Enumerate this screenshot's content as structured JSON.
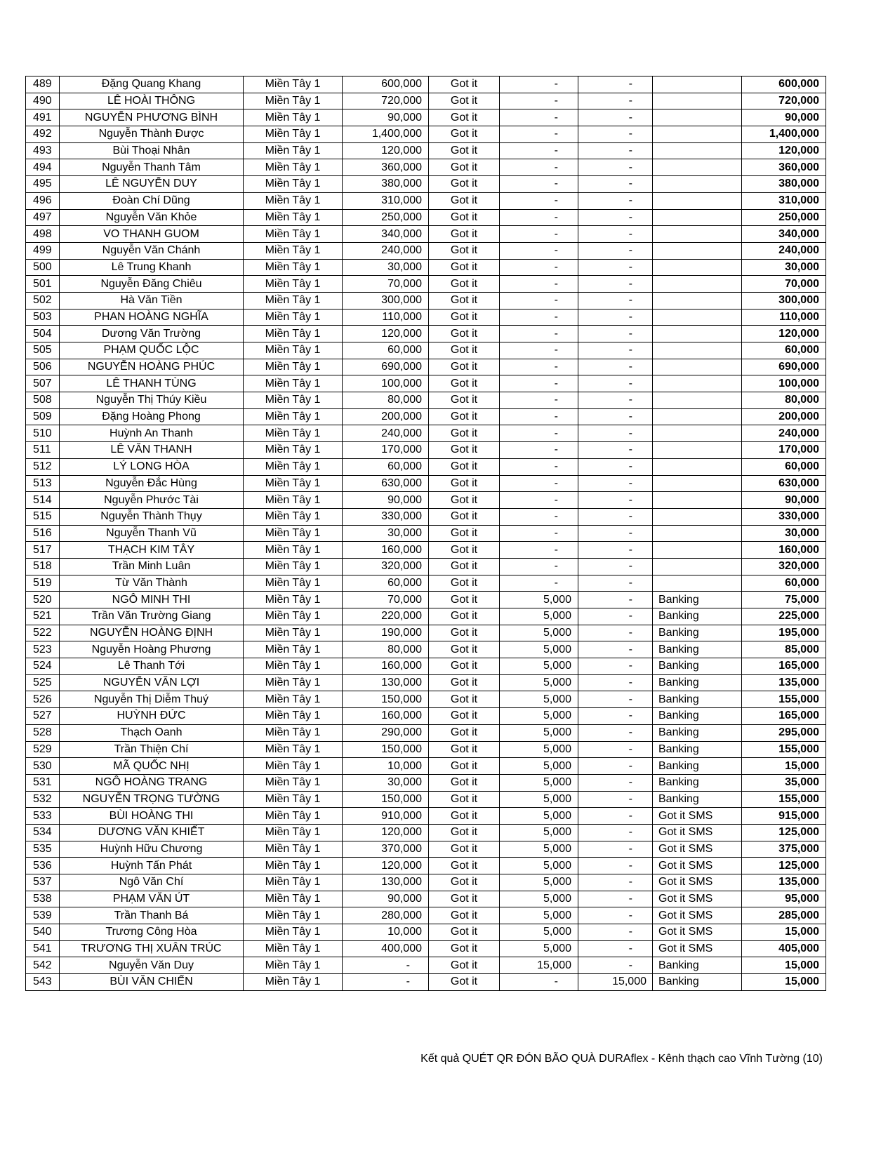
{
  "table": {
    "rows": [
      [
        "489",
        "Đặng Quang Khang",
        "Miền Tây 1",
        "600,000",
        "Got it",
        "-",
        "-",
        "",
        "600,000"
      ],
      [
        "490",
        "LÊ HOÀI THÔNG",
        "Miền Tây 1",
        "720,000",
        "Got it",
        "-",
        "-",
        "",
        "720,000"
      ],
      [
        "491",
        "NGUYỄN PHƯƠNG BÌNH",
        "Miền Tây 1",
        "90,000",
        "Got it",
        "-",
        "-",
        "",
        "90,000"
      ],
      [
        "492",
        "Nguyễn Thành Được",
        "Miền Tây 1",
        "1,400,000",
        "Got it",
        "-",
        "-",
        "",
        "1,400,000"
      ],
      [
        "493",
        "Bùi Thoại Nhân",
        "Miền Tây 1",
        "120,000",
        "Got it",
        "-",
        "-",
        "",
        "120,000"
      ],
      [
        "494",
        "Nguyễn Thanh Tâm",
        "Miền Tây 1",
        "360,000",
        "Got it",
        "-",
        "-",
        "",
        "360,000"
      ],
      [
        "495",
        "LÊ NGUYỄN DUY",
        "Miền Tây 1",
        "380,000",
        "Got it",
        "-",
        "-",
        "",
        "380,000"
      ],
      [
        "496",
        "Đoàn Chí Dũng",
        "Miền Tây 1",
        "310,000",
        "Got it",
        "-",
        "-",
        "",
        "310,000"
      ],
      [
        "497",
        "Nguyễn Văn Khỏe",
        "Miền Tây 1",
        "250,000",
        "Got it",
        "-",
        "-",
        "",
        "250,000"
      ],
      [
        "498",
        "VO THANH GUOM",
        "Miền Tây 1",
        "340,000",
        "Got it",
        "-",
        "-",
        "",
        "340,000"
      ],
      [
        "499",
        "Nguyễn Văn Chánh",
        "Miền Tây 1",
        "240,000",
        "Got it",
        "-",
        "-",
        "",
        "240,000"
      ],
      [
        "500",
        "Lê Trung Khanh",
        "Miền Tây 1",
        "30,000",
        "Got it",
        "-",
        "-",
        "",
        "30,000"
      ],
      [
        "501",
        "Nguyễn Đăng Chiêu",
        "Miền Tây 1",
        "70,000",
        "Got it",
        "-",
        "-",
        "",
        "70,000"
      ],
      [
        "502",
        "Hà Văn Tiền",
        "Miền Tây 1",
        "300,000",
        "Got it",
        "-",
        "-",
        "",
        "300,000"
      ],
      [
        "503",
        "PHAN HOÀNG NGHĨA",
        "Miền Tây 1",
        "110,000",
        "Got it",
        "-",
        "-",
        "",
        "110,000"
      ],
      [
        "504",
        "Dương Văn Trường",
        "Miền Tây 1",
        "120,000",
        "Got it",
        "-",
        "-",
        "",
        "120,000"
      ],
      [
        "505",
        "PHẠM QUỐC LỘC",
        "Miền Tây 1",
        "60,000",
        "Got it",
        "-",
        "-",
        "",
        "60,000"
      ],
      [
        "506",
        "NGUYỄN HOÀNG PHÚC",
        "Miền Tây 1",
        "690,000",
        "Got it",
        "-",
        "-",
        "",
        "690,000"
      ],
      [
        "507",
        "LÊ THANH TÙNG",
        "Miền Tây 1",
        "100,000",
        "Got it",
        "-",
        "-",
        "",
        "100,000"
      ],
      [
        "508",
        "Nguyễn Thị Thúy Kiều",
        "Miền Tây 1",
        "80,000",
        "Got it",
        "-",
        "-",
        "",
        "80,000"
      ],
      [
        "509",
        "Đặng Hoàng Phong",
        "Miền Tây 1",
        "200,000",
        "Got it",
        "-",
        "-",
        "",
        "200,000"
      ],
      [
        "510",
        "Huỳnh An Thanh",
        "Miền Tây 1",
        "240,000",
        "Got it",
        "-",
        "-",
        "",
        "240,000"
      ],
      [
        "511",
        "LÊ VĂN THANH",
        "Miền Tây 1",
        "170,000",
        "Got it",
        "-",
        "-",
        "",
        "170,000"
      ],
      [
        "512",
        "LÝ LONG HÒA",
        "Miền Tây 1",
        "60,000",
        "Got it",
        "-",
        "-",
        "",
        "60,000"
      ],
      [
        "513",
        "Nguyễn Đắc Hùng",
        "Miền Tây 1",
        "630,000",
        "Got it",
        "-",
        "-",
        "",
        "630,000"
      ],
      [
        "514",
        "Nguyễn Phước Tài",
        "Miền Tây 1",
        "90,000",
        "Got it",
        "-",
        "-",
        "",
        "90,000"
      ],
      [
        "515",
        "Nguyễn Thành Thụy",
        "Miền Tây 1",
        "330,000",
        "Got it",
        "-",
        "-",
        "",
        "330,000"
      ],
      [
        "516",
        "Nguyễn Thanh Vũ",
        "Miền Tây 1",
        "30,000",
        "Got it",
        "-",
        "-",
        "",
        "30,000"
      ],
      [
        "517",
        "THẠCH KIM TÂY",
        "Miền Tây 1",
        "160,000",
        "Got it",
        "-",
        "-",
        "",
        "160,000"
      ],
      [
        "518",
        "Trần Minh Luân",
        "Miền Tây 1",
        "320,000",
        "Got it",
        "-",
        "-",
        "",
        "320,000"
      ],
      [
        "519",
        "Từ Văn Thành",
        "Miền Tây 1",
        "60,000",
        "Got it",
        "-",
        "-",
        "",
        "60,000"
      ],
      [
        "520",
        "NGÔ MINH THI",
        "Miền Tây 1",
        "70,000",
        "Got it",
        "5,000",
        "-",
        "Banking",
        "75,000"
      ],
      [
        "521",
        "Trần Văn Trường Giang",
        "Miền Tây 1",
        "220,000",
        "Got it",
        "5,000",
        "-",
        "Banking",
        "225,000"
      ],
      [
        "522",
        "NGUYỄN HOÀNG ĐỊNH",
        "Miền Tây 1",
        "190,000",
        "Got it",
        "5,000",
        "-",
        "Banking",
        "195,000"
      ],
      [
        "523",
        "Nguyễn Hoàng Phương",
        "Miền Tây 1",
        "80,000",
        "Got it",
        "5,000",
        "-",
        "Banking",
        "85,000"
      ],
      [
        "524",
        "Lê Thanh Tới",
        "Miền Tây 1",
        "160,000",
        "Got it",
        "5,000",
        "-",
        "Banking",
        "165,000"
      ],
      [
        "525",
        "NGUYỄN VĂN LỢI",
        "Miền Tây 1",
        "130,000",
        "Got it",
        "5,000",
        "-",
        "Banking",
        "135,000"
      ],
      [
        "526",
        "Nguyễn Thị Diễm Thuý",
        "Miền Tây 1",
        "150,000",
        "Got it",
        "5,000",
        "-",
        "Banking",
        "155,000"
      ],
      [
        "527",
        "HUỲNH ĐỨC",
        "Miền Tây 1",
        "160,000",
        "Got it",
        "5,000",
        "-",
        "Banking",
        "165,000"
      ],
      [
        "528",
        "Thạch Oanh",
        "Miền Tây 1",
        "290,000",
        "Got it",
        "5,000",
        "-",
        "Banking",
        "295,000"
      ],
      [
        "529",
        "Trần Thiện Chí",
        "Miền Tây 1",
        "150,000",
        "Got it",
        "5,000",
        "-",
        "Banking",
        "155,000"
      ],
      [
        "530",
        "MÃ QUỐC NHỊ",
        "Miền Tây 1",
        "10,000",
        "Got it",
        "5,000",
        "-",
        "Banking",
        "15,000"
      ],
      [
        "531",
        "NGÔ HOÀNG TRANG",
        "Miền Tây 1",
        "30,000",
        "Got it",
        "5,000",
        "-",
        "Banking",
        "35,000"
      ],
      [
        "532",
        "NGUYỄN TRỌNG TƯỜNG",
        "Miền Tây 1",
        "150,000",
        "Got it",
        "5,000",
        "-",
        "Banking",
        "155,000"
      ],
      [
        "533",
        "BÙI HOÀNG THI",
        "Miền Tây 1",
        "910,000",
        "Got it",
        "5,000",
        "-",
        "Got it SMS",
        "915,000"
      ],
      [
        "534",
        "DƯƠNG VĂN KHIẾT",
        "Miền Tây 1",
        "120,000",
        "Got it",
        "5,000",
        "-",
        "Got it SMS",
        "125,000"
      ],
      [
        "535",
        "Huỳnh Hữu Chương",
        "Miền Tây 1",
        "370,000",
        "Got it",
        "5,000",
        "-",
        "Got it SMS",
        "375,000"
      ],
      [
        "536",
        "Huỳnh Tấn Phát",
        "Miền Tây 1",
        "120,000",
        "Got it",
        "5,000",
        "-",
        "Got it SMS",
        "125,000"
      ],
      [
        "537",
        "Ngô Văn Chí",
        "Miền Tây 1",
        "130,000",
        "Got it",
        "5,000",
        "-",
        "Got it SMS",
        "135,000"
      ],
      [
        "538",
        "PHẠM VĂN ÚT",
        "Miền Tây 1",
        "90,000",
        "Got it",
        "5,000",
        "-",
        "Got it SMS",
        "95,000"
      ],
      [
        "539",
        "Trần Thanh Bá",
        "Miền Tây 1",
        "280,000",
        "Got it",
        "5,000",
        "-",
        "Got it SMS",
        "285,000"
      ],
      [
        "540",
        "Trương Công Hòa",
        "Miền Tây 1",
        "10,000",
        "Got it",
        "5,000",
        "-",
        "Got it SMS",
        "15,000"
      ],
      [
        "541",
        "TRƯƠNG THỊ XUÂN TRÚC",
        "Miền Tây 1",
        "400,000",
        "Got it",
        "5,000",
        "-",
        "Got it SMS",
        "405,000"
      ],
      [
        "542",
        "Nguyễn Văn Duy",
        "Miền Tây 1",
        "-",
        "Got it",
        "15,000",
        "-",
        "Banking",
        "15,000"
      ],
      [
        "543",
        "BÙI VĂN CHIẾN",
        "Miền Tây 1",
        "-",
        "Got it",
        "-",
        "15,000",
        "Banking",
        "15,000"
      ]
    ]
  },
  "footer": {
    "text": "Kết quả QUÉT QR ĐÓN BÃO QUÀ DURAflex - Kênh thạch cao Vĩnh Tường (10)"
  }
}
